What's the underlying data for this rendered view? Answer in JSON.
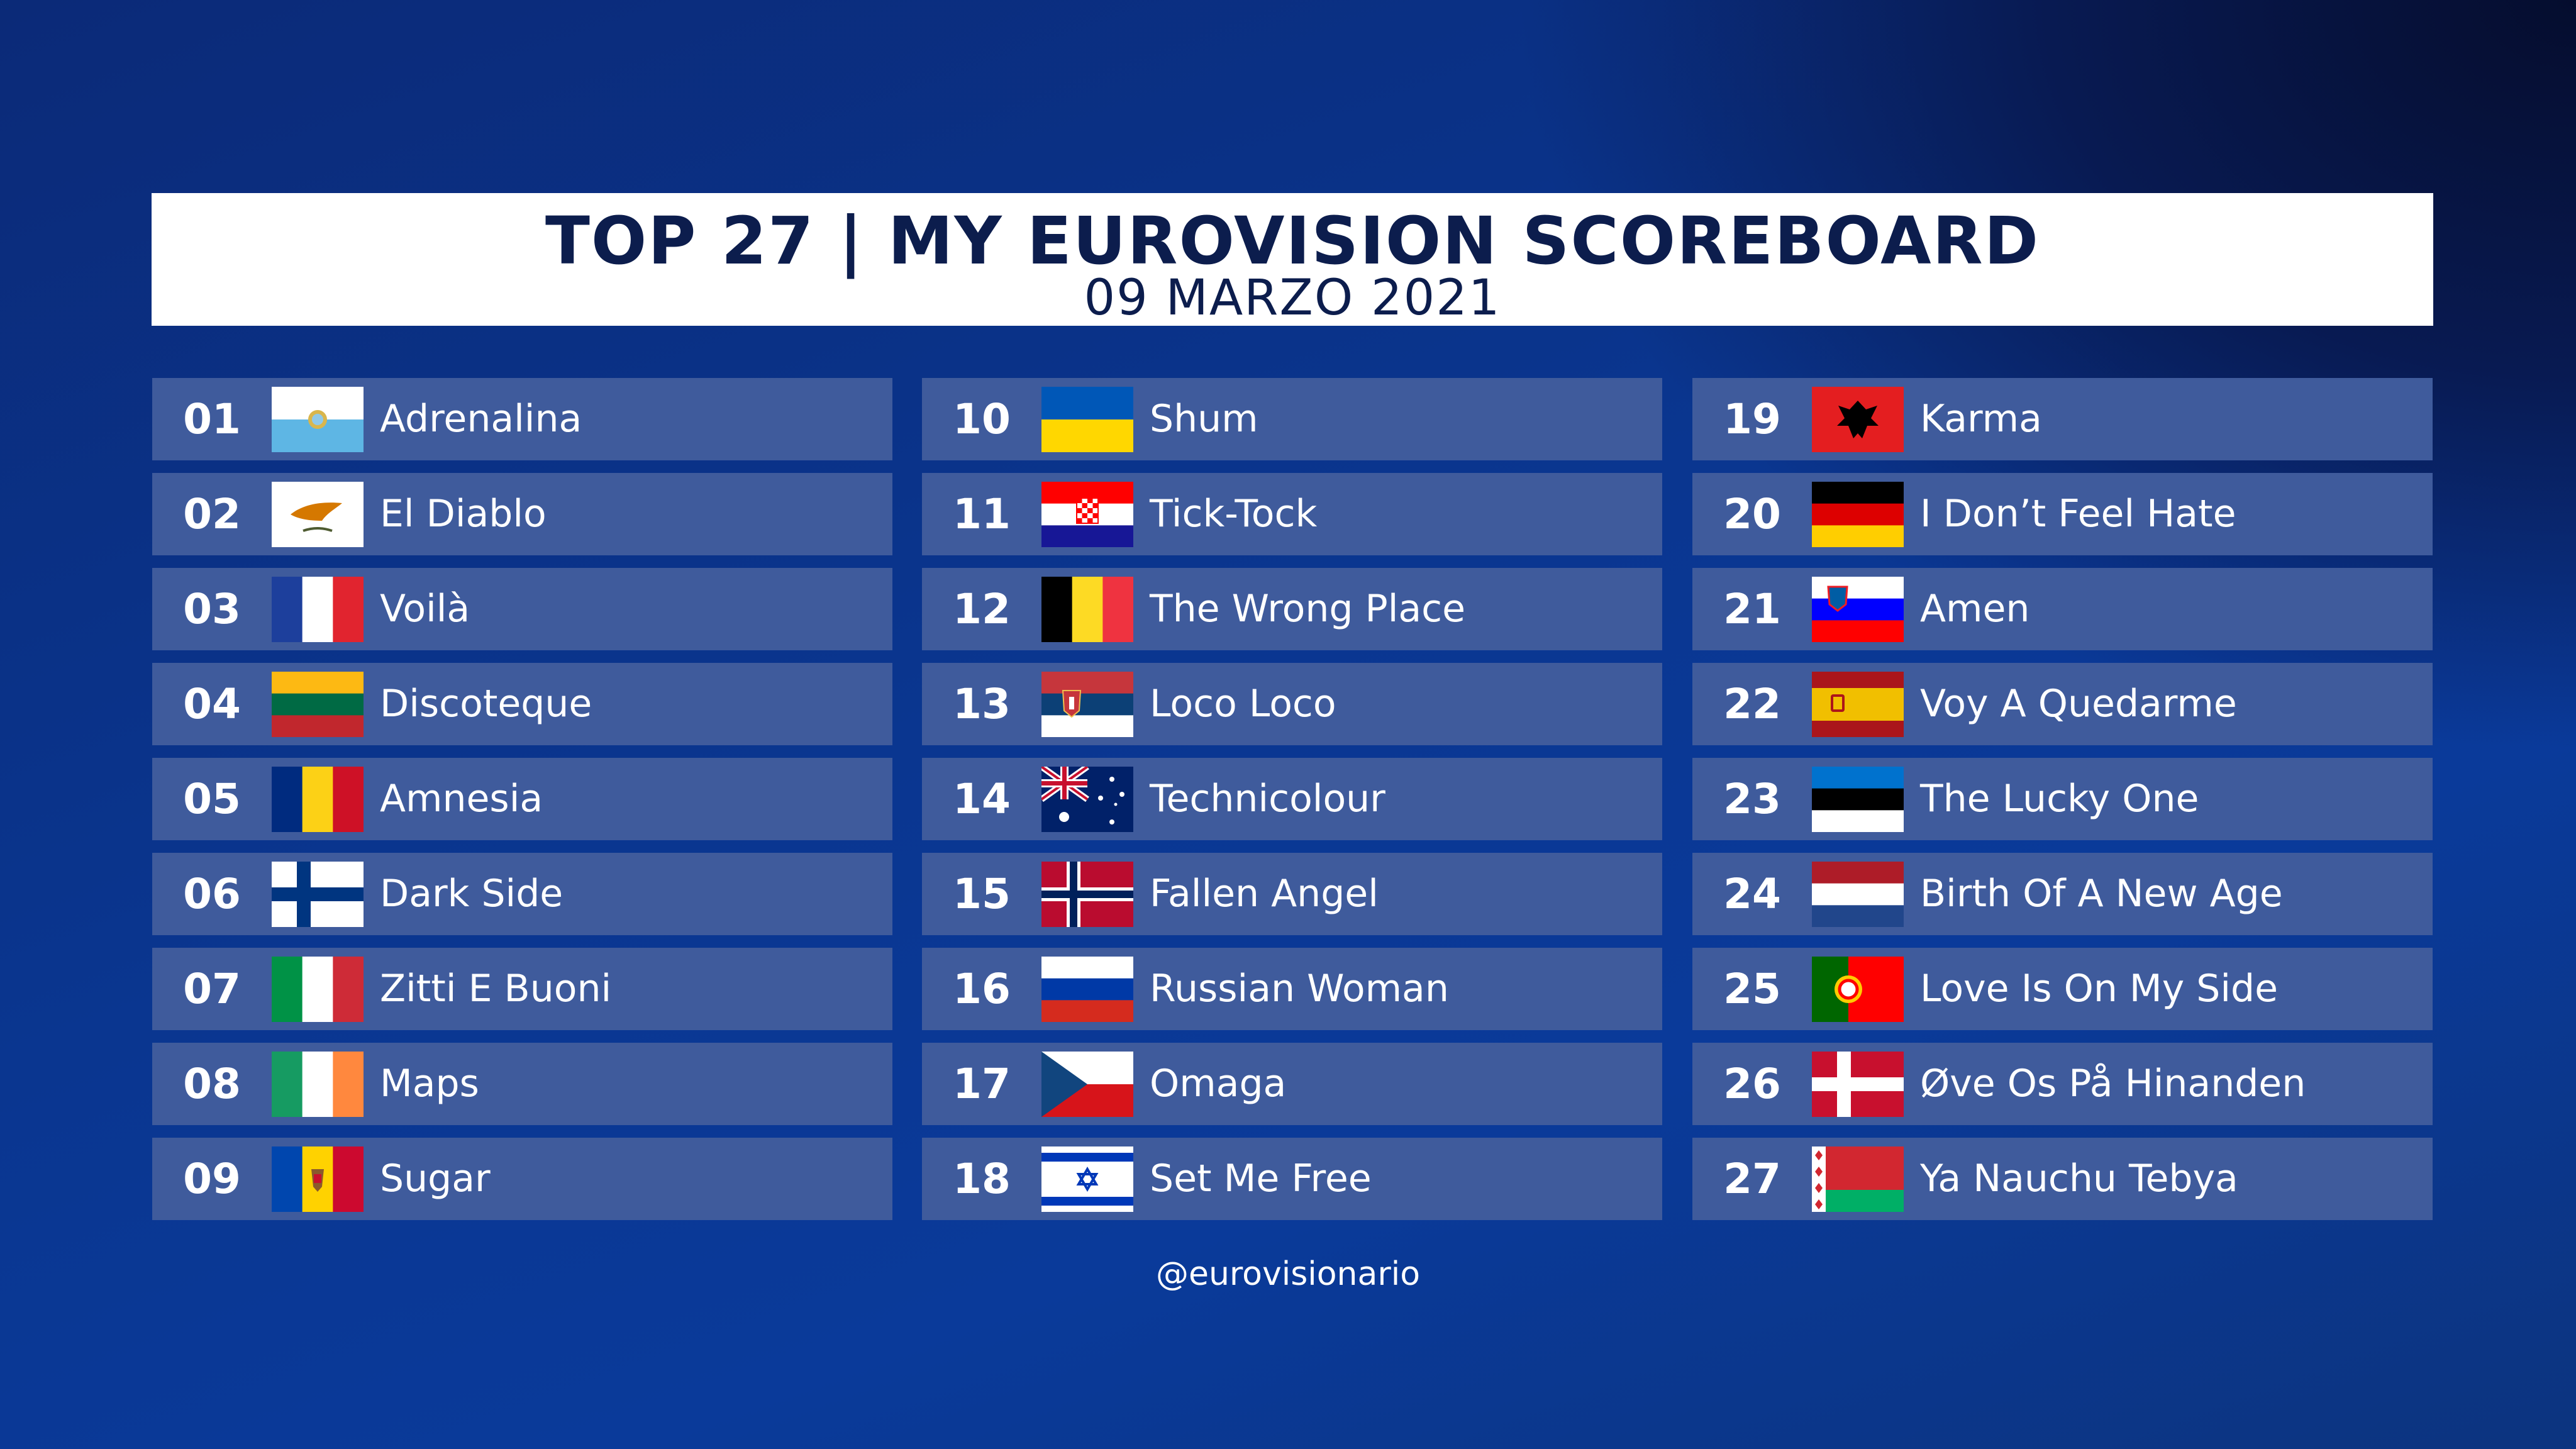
{
  "header": {
    "title": "TOP 27  |  MY EUROVISION SCOREBOARD",
    "date": "09 MARZO 2021"
  },
  "columns": [
    [
      {
        "rank": "01",
        "flag": "san-marino-flag",
        "song": "Adrenalina"
      },
      {
        "rank": "02",
        "flag": "cyprus-flag",
        "song": "El Diablo"
      },
      {
        "rank": "03",
        "flag": "france-flag",
        "song": "Voilà"
      },
      {
        "rank": "04",
        "flag": "lithuania-flag",
        "song": "Discoteque"
      },
      {
        "rank": "05",
        "flag": "romania-flag",
        "song": "Amnesia"
      },
      {
        "rank": "06",
        "flag": "finland-flag",
        "song": "Dark Side"
      },
      {
        "rank": "07",
        "flag": "italy-flag",
        "song": "Zitti E Buoni"
      },
      {
        "rank": "08",
        "flag": "ireland-flag",
        "song": "Maps"
      },
      {
        "rank": "09",
        "flag": "moldova-flag",
        "song": "Sugar"
      }
    ],
    [
      {
        "rank": "10",
        "flag": "ukraine-flag",
        "song": "Shum"
      },
      {
        "rank": "11",
        "flag": "croatia-flag",
        "song": "Tick-Tock"
      },
      {
        "rank": "12",
        "flag": "belgium-flag",
        "song": "The Wrong Place"
      },
      {
        "rank": "13",
        "flag": "serbia-flag",
        "song": "Loco Loco"
      },
      {
        "rank": "14",
        "flag": "australia-flag",
        "song": "Technicolour"
      },
      {
        "rank": "15",
        "flag": "norway-flag",
        "song": "Fallen Angel"
      },
      {
        "rank": "16",
        "flag": "russia-flag",
        "song": "Russian Woman"
      },
      {
        "rank": "17",
        "flag": "czech-republic-flag",
        "song": "Omaga"
      },
      {
        "rank": "18",
        "flag": "israel-flag",
        "song": "Set Me Free"
      }
    ],
    [
      {
        "rank": "19",
        "flag": "albania-flag",
        "song": "Karma"
      },
      {
        "rank": "20",
        "flag": "germany-flag",
        "song": "I Don’t Feel Hate"
      },
      {
        "rank": "21",
        "flag": "slovenia-flag",
        "song": "Amen"
      },
      {
        "rank": "22",
        "flag": "spain-flag",
        "song": "Voy A Quedarme"
      },
      {
        "rank": "23",
        "flag": "estonia-flag",
        "song": "The Lucky One"
      },
      {
        "rank": "24",
        "flag": "netherlands-flag",
        "song": "Birth Of A New Age"
      },
      {
        "rank": "25",
        "flag": "portugal-flag",
        "song": "Love Is On My Side"
      },
      {
        "rank": "26",
        "flag": "denmark-flag",
        "song": "Øve Os På Hinanden"
      },
      {
        "rank": "27",
        "flag": "belarus-flag",
        "song": "Ya Nauchu Tebya"
      }
    ]
  ],
  "footer": {
    "handle": "@eurovisionario"
  },
  "colors": {
    "header_text": "#0c1d4d",
    "row_background": "#3f5b9c",
    "page_background": "#0a3690"
  }
}
